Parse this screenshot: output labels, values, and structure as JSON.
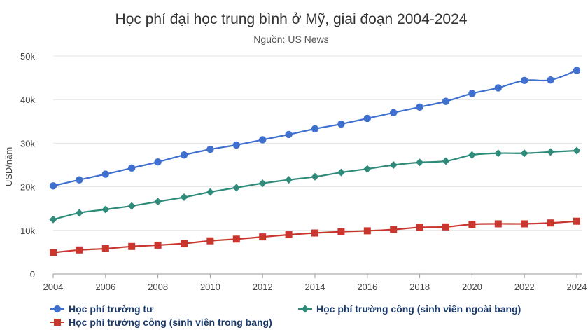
{
  "chart_data": {
    "type": "line",
    "title": "Học phí đại học trung bình ở Mỹ, giai đoạn 2004-2024",
    "subtitle": "Nguồn: US News",
    "xlabel": "",
    "ylabel": "USD/năm",
    "x": [
      2004,
      2005,
      2006,
      2007,
      2008,
      2009,
      2010,
      2011,
      2012,
      2013,
      2014,
      2015,
      2016,
      2017,
      2018,
      2019,
      2020,
      2021,
      2022,
      2023,
      2024
    ],
    "x_ticks": [
      "2004",
      "2006",
      "2008",
      "2010",
      "2012",
      "2014",
      "2016",
      "2018",
      "2020",
      "2022",
      "2024"
    ],
    "y_ticks": [
      "0",
      "10k",
      "20k",
      "30k",
      "40k",
      "50k"
    ],
    "ylim": [
      0,
      50000
    ],
    "xlim": [
      2004,
      2024
    ],
    "grid": "horizontal",
    "legend_position": "bottom",
    "series": [
      {
        "name": "Học phí trường tư",
        "color": "#3f6fcf",
        "marker": "circle",
        "values": [
          20200,
          21600,
          22900,
          24300,
          25700,
          27300,
          28600,
          29600,
          30800,
          32000,
          33300,
          34400,
          35700,
          37000,
          38300,
          39600,
          41400,
          42700,
          44400,
          44500,
          46700
        ]
      },
      {
        "name": "Học phí trường công (sinh viên ngoài bang)",
        "color": "#2e8b7a",
        "marker": "diamond",
        "values": [
          12500,
          14000,
          14800,
          15600,
          16600,
          17600,
          18800,
          19800,
          20800,
          21600,
          22300,
          23300,
          24100,
          25000,
          25600,
          25900,
          27300,
          27700,
          27700,
          28000,
          28300
        ]
      },
      {
        "name": "Học phí trường công (sinh viên trong bang)",
        "color": "#c9362e",
        "marker": "square",
        "values": [
          4900,
          5500,
          5800,
          6300,
          6600,
          7000,
          7600,
          8000,
          8500,
          9000,
          9400,
          9700,
          9900,
          10200,
          10700,
          10800,
          11400,
          11500,
          11500,
          11700,
          12100
        ]
      }
    ]
  }
}
